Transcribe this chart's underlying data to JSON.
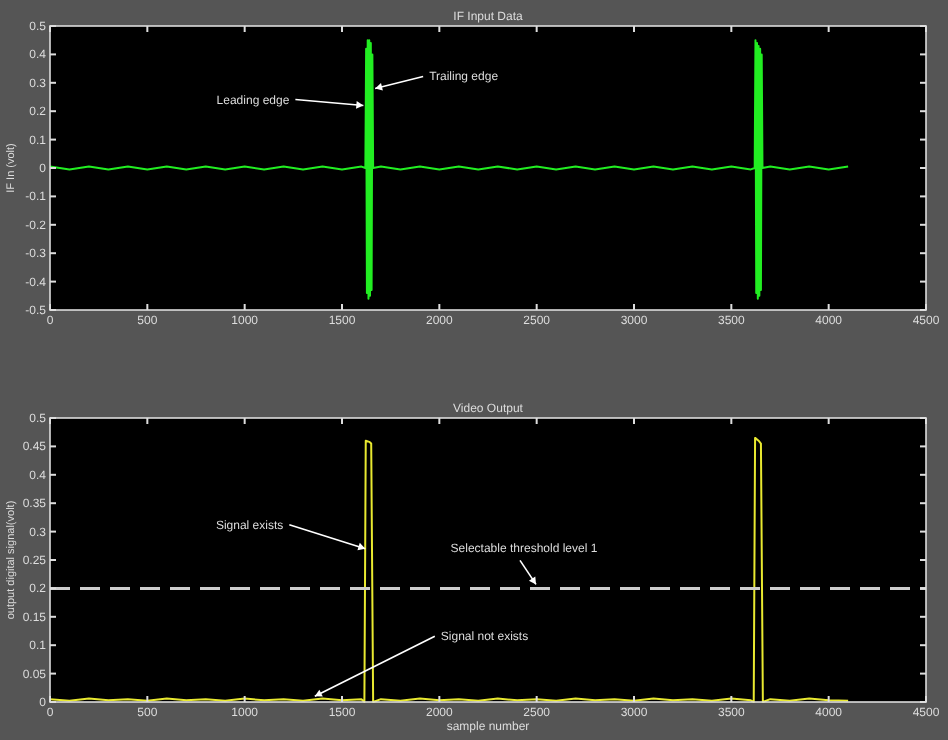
{
  "chart_data": [
    {
      "type": "line",
      "title": "IF Input Data",
      "ylabel": "IF In (volt)",
      "xlim": [
        0,
        4500
      ],
      "xticks": [
        0,
        500,
        1000,
        1500,
        2000,
        2500,
        3000,
        3500,
        4000,
        4500
      ],
      "ylim": [
        -0.5,
        0.5
      ],
      "yticks": [
        -0.5,
        -0.4,
        -0.3,
        -0.2,
        -0.1,
        0,
        0.1,
        0.2,
        0.3,
        0.4,
        0.5
      ],
      "grid": false,
      "series": [
        {
          "color": "#22ee22",
          "x": [
            0,
            100,
            200,
            300,
            400,
            500,
            600,
            700,
            800,
            900,
            1000,
            1100,
            1200,
            1300,
            1400,
            1500,
            1600,
            1620,
            1624,
            1628,
            1632,
            1636,
            1640,
            1644,
            1648,
            1652,
            1656,
            1660,
            1700,
            1800,
            1900,
            2000,
            2100,
            2200,
            2300,
            2400,
            2500,
            2600,
            2700,
            2800,
            2900,
            3000,
            3100,
            3200,
            3300,
            3400,
            3500,
            3600,
            3620,
            3624,
            3628,
            3632,
            3636,
            3640,
            3644,
            3648,
            3652,
            3656,
            3660,
            3700,
            3800,
            3900,
            4000,
            4100
          ],
          "values": [
            0.005,
            -0.005,
            0.005,
            -0.005,
            0.005,
            -0.005,
            0.005,
            -0.005,
            0.005,
            -0.005,
            0.005,
            -0.005,
            0.005,
            -0.005,
            0.005,
            -0.005,
            0.005,
            0,
            0.42,
            -0.44,
            0.45,
            -0.46,
            0.45,
            -0.45,
            0.44,
            -0.43,
            0.4,
            0,
            0.005,
            -0.005,
            0.005,
            -0.005,
            0.005,
            -0.005,
            0.005,
            -0.005,
            0.005,
            -0.005,
            0.005,
            -0.005,
            0.005,
            -0.005,
            0.005,
            -0.005,
            0.005,
            -0.005,
            0.005,
            -0.005,
            0,
            0.45,
            -0.44,
            0.44,
            -0.46,
            0.43,
            -0.45,
            0.42,
            -0.43,
            0.4,
            0,
            0.005,
            -0.005,
            0.005,
            -0.005,
            0.005
          ]
        }
      ],
      "annotations": [
        {
          "text": "Leading edge",
          "x": 1620,
          "y": 0.22
        },
        {
          "text": "Trailing edge",
          "x": 1660,
          "y": 0.28
        }
      ]
    },
    {
      "type": "line",
      "title": "Video Output",
      "xlabel": "sample number",
      "ylabel": "output digital signal(volt)",
      "xlim": [
        0,
        4500
      ],
      "xticks": [
        0,
        500,
        1000,
        1500,
        2000,
        2500,
        3000,
        3500,
        4000,
        4500
      ],
      "ylim": [
        0,
        0.5
      ],
      "yticks": [
        0,
        0.05,
        0.1,
        0.15,
        0.2,
        0.25,
        0.3,
        0.35,
        0.4,
        0.45,
        0.5
      ],
      "grid": false,
      "series": [
        {
          "color": "#e8e830",
          "x": [
            0,
            100,
            200,
            300,
            400,
            500,
            600,
            700,
            800,
            900,
            1000,
            1100,
            1200,
            1300,
            1400,
            1500,
            1600,
            1615,
            1622,
            1640,
            1650,
            1660,
            1700,
            1800,
            1900,
            2000,
            2100,
            2200,
            2300,
            2400,
            2500,
            2600,
            2700,
            2800,
            2900,
            3000,
            3100,
            3200,
            3300,
            3400,
            3500,
            3600,
            3615,
            3622,
            3640,
            3652,
            3662,
            3700,
            3800,
            3900,
            4000,
            4100
          ],
          "values": [
            0.005,
            0.002,
            0.006,
            0.003,
            0.005,
            0.002,
            0.006,
            0.003,
            0.005,
            0.002,
            0.006,
            0.003,
            0.005,
            0.002,
            0.006,
            0.003,
            0.005,
            0,
            0.46,
            0.458,
            0.455,
            0,
            0.005,
            0.002,
            0.006,
            0.003,
            0.005,
            0.002,
            0.006,
            0.003,
            0.005,
            0.002,
            0.006,
            0.003,
            0.005,
            0.002,
            0.006,
            0.003,
            0.005,
            0.002,
            0.006,
            0.003,
            0,
            0.465,
            0.46,
            0.455,
            0,
            0.005,
            0.002,
            0.006,
            0.003,
            0.002
          ]
        }
      ],
      "ref_lines": [
        {
          "axis": "y",
          "value": 0.2,
          "label": "Selectable threshold level 1",
          "color": "#cccccc",
          "line_style": "dashed"
        }
      ],
      "annotations": [
        {
          "text": "Signal exists",
          "x": 1630,
          "y": 0.27
        },
        {
          "text": "Signal not exists",
          "x": 1350,
          "y": 0.01
        }
      ]
    }
  ]
}
